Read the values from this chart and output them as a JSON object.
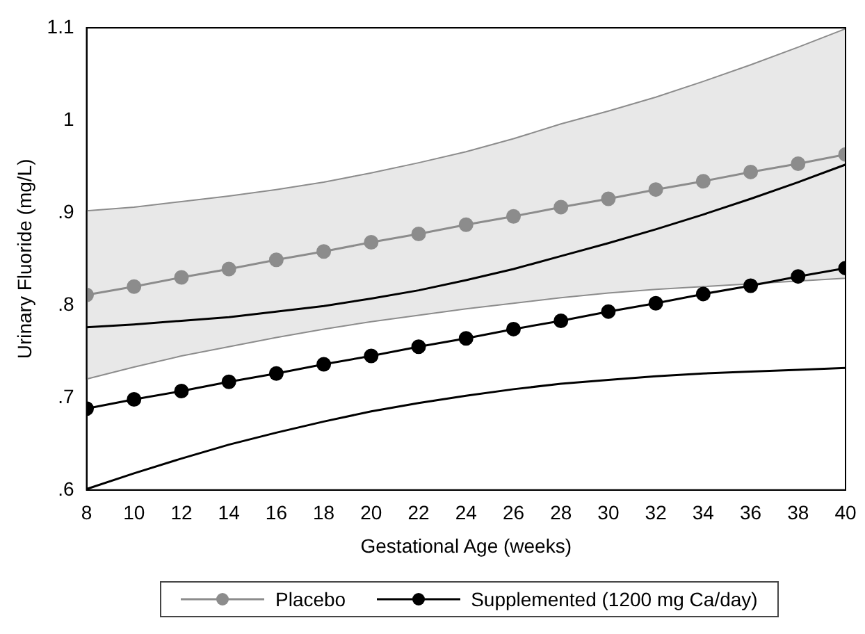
{
  "chart_data": {
    "type": "line",
    "xlabel": "Gestational Age (weeks)",
    "ylabel": "Urinary Fluoride (mg/L)",
    "x": [
      8,
      10,
      12,
      14,
      16,
      18,
      20,
      22,
      24,
      26,
      28,
      30,
      32,
      34,
      36,
      38,
      40
    ],
    "xlim": [
      8,
      40
    ],
    "xticks": [
      8,
      10,
      12,
      14,
      16,
      18,
      20,
      22,
      24,
      26,
      28,
      30,
      32,
      34,
      36,
      38,
      40
    ],
    "ylim": [
      0.6,
      1.1
    ],
    "yticks": [
      {
        "value": 0.6,
        "label": ".6"
      },
      {
        "value": 0.7,
        "label": ".7"
      },
      {
        "value": 0.8,
        "label": ".8"
      },
      {
        "value": 0.9,
        "label": ".9"
      },
      1,
      1.1
    ],
    "grid": false,
    "legend": "bottom",
    "marker": "circle",
    "line_style": "solid",
    "series": [
      {
        "name": "Placebo",
        "color": "#8c8c8c",
        "values": [
          0.811,
          0.82,
          0.83,
          0.839,
          0.849,
          0.858,
          0.868,
          0.877,
          0.887,
          0.896,
          0.906,
          0.915,
          0.925,
          0.934,
          0.944,
          0.953,
          0.963
        ],
        "lower": [
          0.72,
          0.733,
          0.745,
          0.755,
          0.765,
          0.774,
          0.782,
          0.789,
          0.796,
          0.802,
          0.808,
          0.813,
          0.817,
          0.82,
          0.823,
          0.826,
          0.829
        ],
        "upper": [
          0.902,
          0.906,
          0.912,
          0.918,
          0.925,
          0.933,
          0.943,
          0.954,
          0.966,
          0.98,
          0.996,
          1.01,
          1.025,
          1.042,
          1.06,
          1.079,
          1.099
        ]
      },
      {
        "name": "Supplemented (1200 mg Ca/day)",
        "color": "#000000",
        "values": [
          0.688,
          0.698,
          0.707,
          0.717,
          0.726,
          0.736,
          0.745,
          0.755,
          0.764,
          0.774,
          0.783,
          0.793,
          0.802,
          0.812,
          0.821,
          0.831,
          0.84
        ]
      },
      {
        "color": "#000000",
        "marker": "none",
        "values": [
          0.601,
          0.618,
          0.634,
          0.649,
          0.662,
          0.674,
          0.685,
          0.694,
          0.702,
          0.709,
          0.715,
          0.719,
          0.723,
          0.726,
          0.728,
          0.73,
          0.732
        ]
      },
      {
        "color": "#000000",
        "marker": "none",
        "values": [
          0.776,
          0.779,
          0.783,
          0.787,
          0.793,
          0.799,
          0.807,
          0.816,
          0.827,
          0.839,
          0.853,
          0.867,
          0.882,
          0.898,
          0.915,
          0.933,
          0.952
        ]
      }
    ]
  }
}
